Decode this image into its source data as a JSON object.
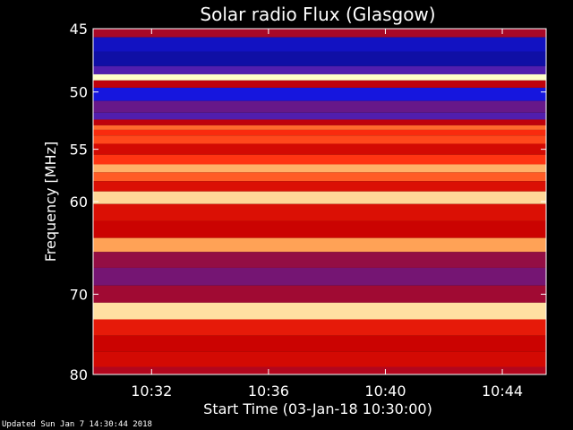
{
  "chart_data": {
    "type": "heatmap",
    "title": "Solar radio Flux (Glasgow)",
    "xlabel": "Start Time (03-Jan-18 10:30:00)",
    "ylabel": "Frequency [MHz]",
    "y_axis_scale": "log",
    "y_axis_direction": "inverted (frequency increases downward)",
    "ylim": [
      45,
      80
    ],
    "yticks": [
      45,
      50,
      55,
      60,
      70,
      80
    ],
    "ytick_labels": [
      "45",
      "50",
      "55",
      "60",
      "70",
      "80"
    ],
    "xlim": [
      "10:30:00",
      "10:45:30"
    ],
    "xticks": [
      "10:32",
      "10:36",
      "10:40",
      "10:44"
    ],
    "xtick_labels": [
      "10:32",
      "10:36",
      "10:40",
      "10:44"
    ],
    "colormap": [
      "#000033",
      "#1a1aff",
      "#4b1fb8",
      "#8a1050",
      "#c80000",
      "#ff3010",
      "#ff9040",
      "#ffffc8"
    ],
    "bands": [
      {
        "freq": 45.3,
        "intensity": 0.5
      },
      {
        "freq": 46.0,
        "intensity": 0.1
      },
      {
        "freq": 47.5,
        "intensity": 0.08
      },
      {
        "freq": 48.3,
        "intensity": 0.3
      },
      {
        "freq": 48.8,
        "intensity": 1.0
      },
      {
        "freq": 49.3,
        "intensity": 0.55
      },
      {
        "freq": 50.0,
        "intensity": 0.12
      },
      {
        "freq": 51.5,
        "intensity": 0.35
      },
      {
        "freq": 52.0,
        "intensity": 0.3
      },
      {
        "freq": 52.7,
        "intensity": 0.55
      },
      {
        "freq": 53.0,
        "intensity": 0.8
      },
      {
        "freq": 53.5,
        "intensity": 0.7
      },
      {
        "freq": 54.0,
        "intensity": 0.75
      },
      {
        "freq": 55.0,
        "intensity": 0.6
      },
      {
        "freq": 56.0,
        "intensity": 0.72
      },
      {
        "freq": 56.8,
        "intensity": 0.9
      },
      {
        "freq": 57.5,
        "intensity": 0.78
      },
      {
        "freq": 58.5,
        "intensity": 0.62
      },
      {
        "freq": 59.5,
        "intensity": 0.95
      },
      {
        "freq": 61.0,
        "intensity": 0.62
      },
      {
        "freq": 63.0,
        "intensity": 0.58
      },
      {
        "freq": 64.5,
        "intensity": 0.88
      },
      {
        "freq": 66.0,
        "intensity": 0.45
      },
      {
        "freq": 68.0,
        "intensity": 0.38
      },
      {
        "freq": 70.0,
        "intensity": 0.48
      },
      {
        "freq": 72.0,
        "intensity": 0.96
      },
      {
        "freq": 74.0,
        "intensity": 0.65
      },
      {
        "freq": 76.0,
        "intensity": 0.58
      },
      {
        "freq": 78.0,
        "intensity": 0.6
      },
      {
        "freq": 80.0,
        "intensity": 0.52
      }
    ],
    "grid": false
  },
  "footer": "Updated Sun Jan  7 14:30:44 2018"
}
